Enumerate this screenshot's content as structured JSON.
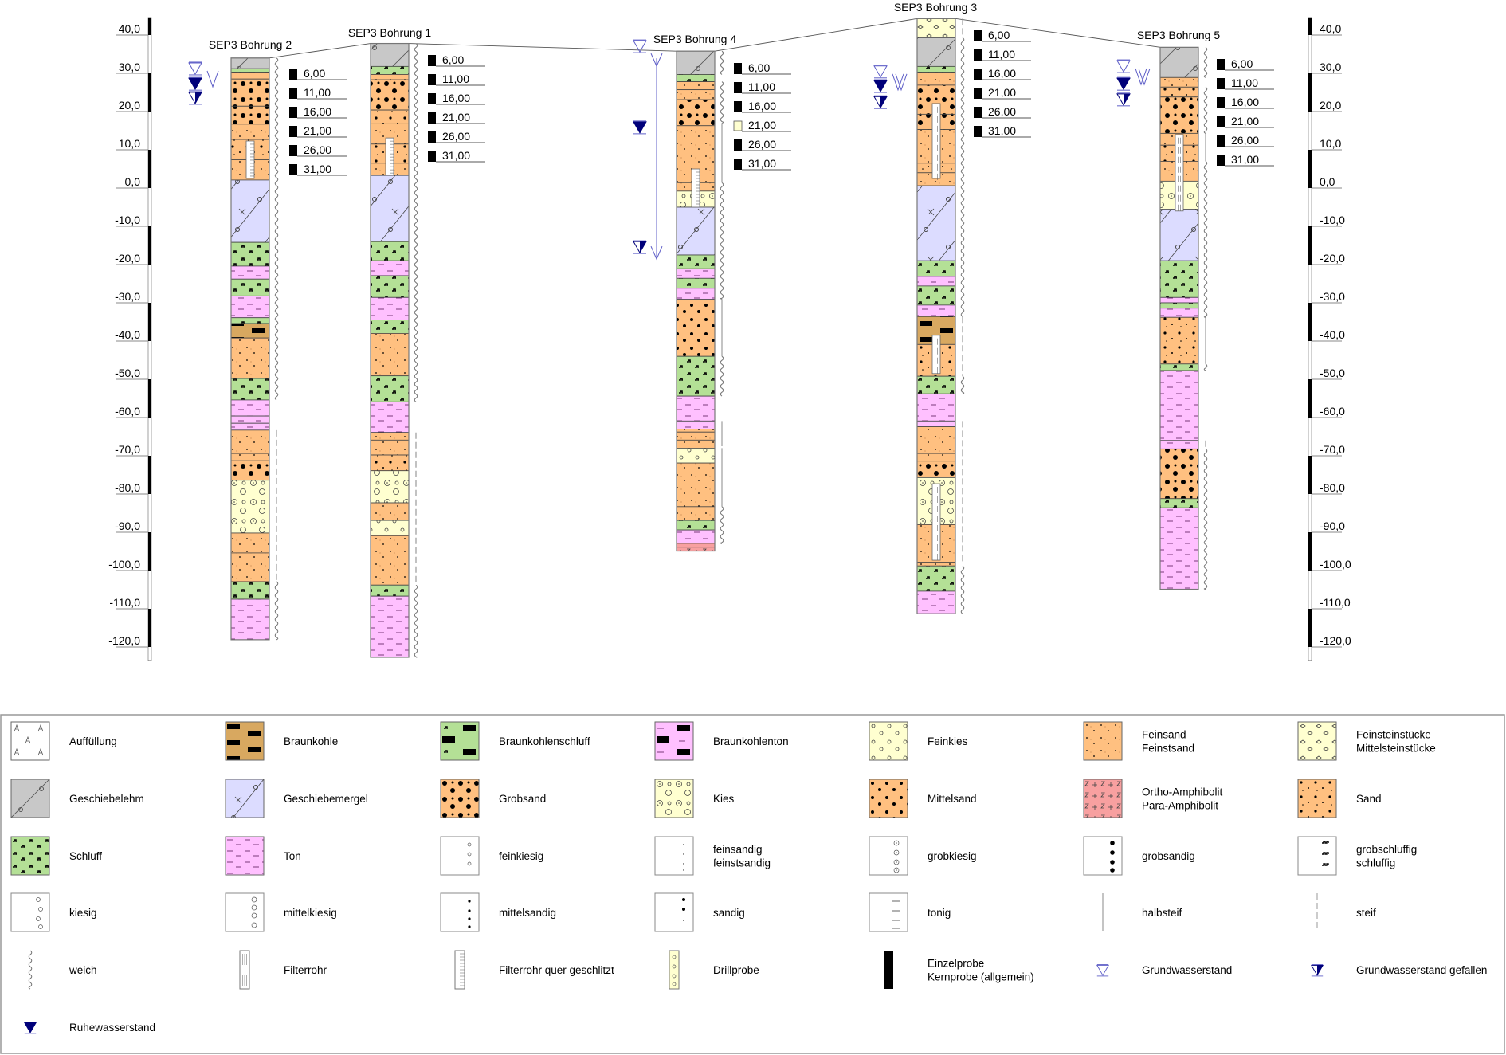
{
  "axis": {
    "left_labels": [
      "40,0",
      "30,0",
      "20,0",
      "10,0",
      "0,0",
      "-10,0",
      "-20,0",
      "-30,0",
      "-40,0",
      "-50,0",
      "-60,0",
      "-70,0",
      "-80,0",
      "-90,0",
      "-100,0",
      "-110,0",
      "-120,0"
    ],
    "right_labels": [
      "40,0",
      "30,0",
      "20,0",
      "10,0",
      "0,0",
      "-10,0",
      "-20,0",
      "-30,0",
      "-40,0",
      "-50,0",
      "-60,0",
      "-70,0",
      "-80,0",
      "-90,0",
      "-100,0",
      "-110,0",
      "-120,0"
    ],
    "ticks": [
      40,
      30,
      20,
      10,
      0,
      -10,
      -20,
      -30,
      -40,
      -50,
      -60,
      -70,
      -80,
      -90,
      -100,
      -110,
      -120
    ]
  },
  "colors": {
    "feinsand": "#FFC080",
    "sand": "#FFC080",
    "mittelsand": "#FFC080",
    "grobsand": "#FFC080",
    "schluff": "#B4E096",
    "ton": "#FFC0FF",
    "geschiebelehm": "#C8C8C8",
    "geschiebemergel": "#DCDCFF",
    "kies": "#FFFFD0",
    "feinkies": "#FFFFD0",
    "feinsteinstuecke": "#FFFFD0",
    "braunkohle": "#D8A860",
    "braunkohlenschluff": "#B4E096",
    "braunkohlenton": "#FFC0FF",
    "amphibolit": "#F8A0A0",
    "auffuellung": "#FFFFFF",
    "water_open": "#6060C8",
    "water_filled": "#00007A"
  },
  "boreholes": [
    {
      "name": "SEP3 Bohrung 2",
      "top": 34.0,
      "layers": [
        [
          31.2,
          "geschiebelehm"
        ],
        [
          30.3,
          "schluff"
        ],
        [
          28.5,
          "feinsand"
        ],
        [
          21.4,
          "grobsand"
        ],
        [
          16.7,
          "grobsand"
        ],
        [
          12.7,
          "feinsand"
        ],
        [
          7.4,
          "sand"
        ],
        [
          2.1,
          "feinsand"
        ],
        [
          -14.2,
          "geschiebemergel"
        ],
        [
          -20.4,
          "schluff"
        ],
        [
          -23.8,
          "ton"
        ],
        [
          -28.2,
          "schluff"
        ],
        [
          -33.9,
          "ton"
        ],
        [
          -35.4,
          "schluff"
        ],
        [
          -39.2,
          "braunkohle"
        ],
        [
          -49.8,
          "feinsand"
        ],
        [
          -55.4,
          "schluff"
        ],
        [
          -59.6,
          "ton"
        ],
        [
          -61.5,
          "ton"
        ],
        [
          -63.3,
          "ton"
        ],
        [
          -69.4,
          "feinsand"
        ],
        [
          -71.3,
          "feinsand"
        ],
        [
          -76.4,
          "grobsand"
        ],
        [
          -90.2,
          "kies"
        ],
        [
          -95.4,
          "feinsand"
        ],
        [
          -102.9,
          "feinsand"
        ],
        [
          -107.5,
          "schluff"
        ],
        [
          -118.1,
          "ton"
        ]
      ],
      "filters": [
        {
          "from": 12.3,
          "to": 2.5,
          "type": "quer"
        }
      ],
      "consistency": [
        [
          34.0,
          -55.4,
          "weich"
        ],
        [
          -63.3,
          -102.9,
          "steif"
        ],
        [
          -102.9,
          -118.1,
          "weich"
        ]
      ],
      "water_levels": [
        {
          "elev": 29.8,
          "kind": "grundwasserstand"
        },
        {
          "elev": 25.8,
          "kind": "ruhewasserstand"
        },
        {
          "elev": 22.1,
          "kind": "gefallen"
        }
      ],
      "samples": [
        {
          "label": "6,00",
          "kind": "einzelprobe"
        },
        {
          "label": "11,00",
          "kind": "einzelprobe"
        },
        {
          "label": "16,00",
          "kind": "einzelprobe"
        },
        {
          "label": "21,00",
          "kind": "einzelprobe"
        },
        {
          "label": "26,00",
          "kind": "einzelprobe"
        },
        {
          "label": "31,00",
          "kind": "einzelprobe"
        }
      ]
    },
    {
      "name": "SEP3 Bohrung 1",
      "top": 37.8,
      "layers": [
        [
          31.8,
          "geschiebelehm"
        ],
        [
          29.7,
          "schluff"
        ],
        [
          28.3,
          "feinsand"
        ],
        [
          20.4,
          "grobsand"
        ],
        [
          16.8,
          "sand"
        ],
        [
          11.5,
          "feinsand"
        ],
        [
          6.5,
          "sand"
        ],
        [
          3.3,
          "feinsand"
        ],
        [
          -14.0,
          "geschiebemergel"
        ],
        [
          -19.0,
          "schluff"
        ],
        [
          -22.9,
          "ton"
        ],
        [
          -28.6,
          "schluff"
        ],
        [
          -34.5,
          "ton"
        ],
        [
          -38.0,
          "schluff"
        ],
        [
          -49.1,
          "feinsand"
        ],
        [
          -55.9,
          "schluff"
        ],
        [
          -63.9,
          "ton"
        ],
        [
          -65.9,
          "feinsand"
        ],
        [
          -69.8,
          "feinsand"
        ],
        [
          -73.9,
          "sand"
        ],
        [
          -82.3,
          "kies"
        ],
        [
          -86.9,
          "feinsand"
        ],
        [
          -90.9,
          "feinkies"
        ],
        [
          -103.8,
          "feinsand"
        ],
        [
          -106.7,
          "schluff"
        ],
        [
          -122.7,
          "ton"
        ]
      ],
      "filters": [
        {
          "from": 13.1,
          "to": 3.3,
          "type": "quer"
        }
      ],
      "consistency": [
        [
          37.8,
          -55.9,
          "weich"
        ],
        [
          -63.9,
          -103.8,
          "steif"
        ],
        [
          -103.8,
          -122.7,
          "weich"
        ]
      ],
      "water_levels": [],
      "samples": [
        {
          "label": "6,00",
          "kind": "einzelprobe"
        },
        {
          "label": "11,00",
          "kind": "einzelprobe"
        },
        {
          "label": "16,00",
          "kind": "einzelprobe"
        },
        {
          "label": "21,00",
          "kind": "einzelprobe"
        },
        {
          "label": "26,00",
          "kind": "einzelprobe"
        },
        {
          "label": "31,00",
          "kind": "einzelprobe"
        }
      ]
    },
    {
      "name": "SEP3 Bohrung 4",
      "top": 35.8,
      "layers": [
        [
          29.7,
          "geschiebelehm"
        ],
        [
          27.8,
          "schluff"
        ],
        [
          25.7,
          "feinsand"
        ],
        [
          23.1,
          "feinsand"
        ],
        [
          16.3,
          "grobsand"
        ],
        [
          1.4,
          "feinsand"
        ],
        [
          -0.8,
          "feinsand"
        ],
        [
          -5.0,
          "kies"
        ],
        [
          -17.5,
          "geschiebemergel"
        ],
        [
          -21.1,
          "schluff"
        ],
        [
          -23.6,
          "ton"
        ],
        [
          -26.2,
          "schluff"
        ],
        [
          -29.1,
          "ton"
        ],
        [
          -44.0,
          "mittelsand"
        ],
        [
          -54.4,
          "schluff"
        ],
        [
          -60.9,
          "ton"
        ],
        [
          -63.0,
          "ton"
        ],
        [
          -63.8,
          "feinsand"
        ],
        [
          -65.9,
          "feinsand"
        ],
        [
          -68.0,
          "feinsand"
        ],
        [
          -71.9,
          "feinkies"
        ],
        [
          -83.3,
          "feinsand"
        ],
        [
          -86.9,
          "feinsand"
        ],
        [
          -89.4,
          "schluff"
        ],
        [
          -92.9,
          "ton"
        ],
        [
          -93.9,
          "amphibolit"
        ],
        [
          -94.9,
          "amphibolit"
        ]
      ],
      "filters": [
        {
          "from": 5.0,
          "to": -5.0,
          "type": "quer"
        }
      ],
      "consistency": [
        [
          35.8,
          29.7,
          "weich"
        ],
        [
          27.8,
          17.0,
          "weich"
        ],
        [
          17.0,
          1.4,
          "halbsteif"
        ],
        [
          1.4,
          -29.0,
          "weich"
        ],
        [
          -29.0,
          -44.0,
          "halbsteif"
        ],
        [
          -44.0,
          -54.4,
          "weich"
        ],
        [
          -60.9,
          -67.5,
          "halbsteif"
        ],
        [
          -68.0,
          -83.3,
          "halbsteif"
        ],
        [
          -83.3,
          -93.0,
          "weich"
        ]
      ],
      "water_levels": [
        {
          "elev": 35.6,
          "kind": "grundwasserstand"
        },
        {
          "elev": 14.4,
          "kind": "ruhewasserstand"
        },
        {
          "elev": -16.9,
          "kind": "gefallen"
        }
      ],
      "samples": [
        {
          "label": "6,00",
          "kind": "einzelprobe"
        },
        {
          "label": "11,00",
          "kind": "einzelprobe"
        },
        {
          "label": "16,00",
          "kind": "einzelprobe"
        },
        {
          "label": "21,00",
          "kind": "drillprobe"
        },
        {
          "label": "26,00",
          "kind": "einzelprobe"
        },
        {
          "label": "31,00",
          "kind": "einzelprobe"
        }
      ]
    },
    {
      "name": "SEP3 Bohrung 3",
      "top": 44.3,
      "layers": [
        [
          39.3,
          "feinsteinstuecke"
        ],
        [
          31.8,
          "geschiebelehm"
        ],
        [
          30.3,
          "schluff"
        ],
        [
          26.9,
          "feinsand"
        ],
        [
          19.3,
          "grobsand"
        ],
        [
          15.3,
          "grobsand"
        ],
        [
          6.5,
          "feinsand"
        ],
        [
          4.0,
          "sand"
        ],
        [
          0.6,
          "feinsand"
        ],
        [
          -19.0,
          "geschiebemergel"
        ],
        [
          -23.1,
          "schluff"
        ],
        [
          -25.6,
          "ton"
        ],
        [
          -30.6,
          "schluff"
        ],
        [
          -33.6,
          "ton"
        ],
        [
          -40.9,
          "braunkohle"
        ],
        [
          -49.2,
          "sand"
        ],
        [
          -53.8,
          "schluff"
        ],
        [
          -60.9,
          "ton"
        ],
        [
          -62.4,
          "ton"
        ],
        [
          -69.4,
          "feinsand"
        ],
        [
          -71.4,
          "feinsand"
        ],
        [
          -75.7,
          "grobsand"
        ],
        [
          -88.0,
          "kies"
        ],
        [
          -97.8,
          "feinsand"
        ],
        [
          -98.8,
          "feinsand"
        ],
        [
          -105.4,
          "schluff"
        ],
        [
          -111.3,
          "ton"
        ]
      ],
      "filters": [
        {
          "from": 22.1,
          "to": 2.5,
          "type": "rohr"
        },
        {
          "from": -38.5,
          "to": -48.5,
          "type": "rohr"
        },
        {
          "from": -77.3,
          "to": -97.3,
          "type": "rohr"
        }
      ],
      "consistency": [
        [
          44.3,
          39.3,
          "steif"
        ],
        [
          39.3,
          -33.6,
          "weich"
        ],
        [
          -33.6,
          -49.2,
          "steif"
        ],
        [
          -49.2,
          -53.8,
          "weich"
        ],
        [
          -60.9,
          -97.8,
          "steif"
        ],
        [
          -98.8,
          -111.3,
          "weich"
        ]
      ],
      "water_levels": [
        {
          "elev": 29.0,
          "kind": "grundwasserstand"
        },
        {
          "elev": 25.2,
          "kind": "ruhewasserstand"
        },
        {
          "elev": 21.0,
          "kind": "gefallen"
        }
      ],
      "samples": [
        {
          "label": "6,00",
          "kind": "einzelprobe"
        },
        {
          "label": "11,00",
          "kind": "einzelprobe"
        },
        {
          "label": "16,00",
          "kind": "einzelprobe"
        },
        {
          "label": "21,00",
          "kind": "einzelprobe"
        },
        {
          "label": "26,00",
          "kind": "einzelprobe"
        },
        {
          "label": "31,00",
          "kind": "einzelprobe"
        }
      ]
    },
    {
      "name": "SEP3 Bohrung 5",
      "top": 36.8,
      "layers": [
        [
          28.9,
          "geschiebelehm"
        ],
        [
          26.4,
          "feinsand"
        ],
        [
          23.8,
          "sand"
        ],
        [
          14.3,
          "grobsand"
        ],
        [
          11.2,
          "feinsand"
        ],
        [
          7.0,
          "sand"
        ],
        [
          1.8,
          "feinsand"
        ],
        [
          -5.5,
          "kies"
        ],
        [
          -19.0,
          "geschiebemergel"
        ],
        [
          -28.6,
          "schluff"
        ],
        [
          -30.0,
          "ton"
        ],
        [
          -31.4,
          "schluff"
        ],
        [
          -33.8,
          "ton"
        ],
        [
          -46.0,
          "sand"
        ],
        [
          -47.7,
          "schluff"
        ],
        [
          -66.0,
          "ton"
        ],
        [
          -68.2,
          "ton"
        ],
        [
          -81.2,
          "grobsand"
        ],
        [
          -83.6,
          "schluff"
        ],
        [
          -104.9,
          "ton"
        ]
      ],
      "filters": [
        {
          "from": 14.0,
          "to": -6.0,
          "type": "rohr"
        }
      ],
      "consistency": [
        [
          36.8,
          28.9,
          "weich"
        ],
        [
          26.4,
          14.3,
          "weich"
        ],
        [
          14.3,
          7.0,
          "halbsteif"
        ],
        [
          7.0,
          -33.8,
          "weich"
        ],
        [
          -33.8,
          -46.0,
          "halbsteif"
        ],
        [
          -46.0,
          -47.7,
          "weich"
        ],
        [
          -66.0,
          -68.2,
          "steif"
        ],
        [
          -68.2,
          -104.9,
          "weich"
        ]
      ],
      "water_levels": [
        {
          "elev": 30.4,
          "kind": "grundwasserstand"
        },
        {
          "elev": 25.8,
          "kind": "ruhewasserstand"
        },
        {
          "elev": 21.7,
          "kind": "gefallen"
        }
      ],
      "samples": [
        {
          "label": "6,00",
          "kind": "einzelprobe"
        },
        {
          "label": "11,00",
          "kind": "einzelprobe"
        },
        {
          "label": "16,00",
          "kind": "einzelprobe"
        },
        {
          "label": "21,00",
          "kind": "einzelprobe"
        },
        {
          "label": "26,00",
          "kind": "einzelprobe"
        },
        {
          "label": "31,00",
          "kind": "einzelprobe"
        }
      ]
    }
  ],
  "legend": {
    "items": [
      {
        "lines": [
          "Auffüllung"
        ],
        "symbol": "auffuellung"
      },
      {
        "lines": [
          "Braunkohle"
        ],
        "symbol": "braunkohle"
      },
      {
        "lines": [
          "Braunkohlenschluff"
        ],
        "symbol": "braunkohlenschluff"
      },
      {
        "lines": [
          "Braunkohlenton"
        ],
        "symbol": "braunkohlenton"
      },
      {
        "lines": [
          "Feinkies"
        ],
        "symbol": "feinkies"
      },
      {
        "lines": [
          "Feinsand",
          "Feinstsand"
        ],
        "symbol": "feinsand"
      },
      {
        "lines": [
          "Feinsteinstücke",
          "Mittelsteinstücke"
        ],
        "symbol": "feinsteinstuecke"
      },
      {
        "lines": [
          "Geschiebelehm"
        ],
        "symbol": "geschiebelehm"
      },
      {
        "lines": [
          "Geschiebemergel"
        ],
        "symbol": "geschiebemergel"
      },
      {
        "lines": [
          "Grobsand"
        ],
        "symbol": "grobsand"
      },
      {
        "lines": [
          "Kies"
        ],
        "symbol": "kies"
      },
      {
        "lines": [
          "Mittelsand"
        ],
        "symbol": "mittelsand"
      },
      {
        "lines": [
          "Ortho-Amphibolit",
          "Para-Amphibolit"
        ],
        "symbol": "amphibolit"
      },
      {
        "lines": [
          "Sand"
        ],
        "symbol": "sand"
      },
      {
        "lines": [
          "Schluff"
        ],
        "symbol": "schluff"
      },
      {
        "lines": [
          "Ton"
        ],
        "symbol": "ton"
      },
      {
        "lines": [
          "feinkiesig"
        ],
        "symbol": "m-feinkiesig"
      },
      {
        "lines": [
          "feinsandig",
          "feinstsandig"
        ],
        "symbol": "m-feinsandig"
      },
      {
        "lines": [
          "grobkiesig"
        ],
        "symbol": "m-grobkiesig"
      },
      {
        "lines": [
          "grobsandig"
        ],
        "symbol": "m-grobsandig"
      },
      {
        "lines": [
          "grobschluffig",
          "schluffig"
        ],
        "symbol": "m-schluffig"
      },
      {
        "lines": [
          "kiesig"
        ],
        "symbol": "m-kiesig"
      },
      {
        "lines": [
          "mittelkiesig"
        ],
        "symbol": "m-mittelkiesig"
      },
      {
        "lines": [
          "mittelsandig"
        ],
        "symbol": "m-mittelsandig"
      },
      {
        "lines": [
          "sandig"
        ],
        "symbol": "m-sandig"
      },
      {
        "lines": [
          "tonig"
        ],
        "symbol": "m-tonig"
      },
      {
        "lines": [
          "halbsteif"
        ],
        "symbol": "halbsteif"
      },
      {
        "lines": [
          "steif"
        ],
        "symbol": "steif"
      },
      {
        "lines": [
          "weich"
        ],
        "symbol": "weich"
      },
      {
        "lines": [
          "Filterrohr"
        ],
        "symbol": "filterrohr"
      },
      {
        "lines": [
          "Filterrohr quer geschlitzt"
        ],
        "symbol": "filterrohr-quer"
      },
      {
        "lines": [
          "Drillprobe"
        ],
        "symbol": "drillprobe"
      },
      {
        "lines": [
          "Einzelprobe",
          "Kernprobe (allgemein)"
        ],
        "symbol": "einzelprobe"
      },
      {
        "lines": [
          "Grundwasserstand"
        ],
        "symbol": "grundwasserstand"
      },
      {
        "lines": [
          "Grundwasserstand gefallen"
        ],
        "symbol": "gefallen"
      },
      {
        "lines": [
          "Ruhewasserstand"
        ],
        "symbol": "ruhewasserstand"
      }
    ]
  }
}
